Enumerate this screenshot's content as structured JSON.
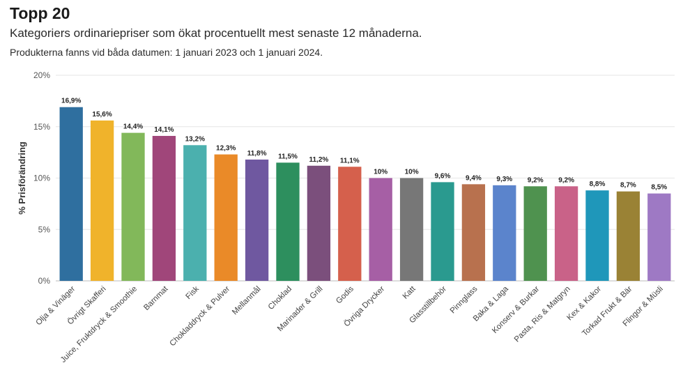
{
  "header": {
    "title": "Topp 20",
    "subtitle": "Kategoriers ordinariepriser som ökat procentuellt mest senaste 12 månaderna.",
    "note": "Produkterna fanns vid båda datumen: 1 januari 2023 och 1 januari 2024."
  },
  "chart_data": {
    "type": "bar",
    "title": "Topp 20",
    "xlabel": "",
    "ylabel": "% Prisförändring",
    "ylim": [
      0,
      20
    ],
    "yticks": [
      0,
      5,
      10,
      15,
      20
    ],
    "ytick_labels": [
      "0%",
      "5%",
      "10%",
      "15%",
      "20%"
    ],
    "grid": true,
    "categories": [
      "Olja & Vinäger",
      "Övrigt Skafferi",
      "Juice, Fruktdryck & Smoothie",
      "Barnmat",
      "Fisk",
      "Chokladdryck & Pulver",
      "Mellanmål",
      "Choklad",
      "Marinader & Grill",
      "Godis",
      "Övriga Drycker",
      "Katt",
      "Glasstillbehör",
      "Pinnglass",
      "Baka & Laga",
      "Konserv & Burkar",
      "Pasta, Ris & Matgryn",
      "Kex & Kakor",
      "Torkad Frukt & Bär",
      "Flingor & Müsli"
    ],
    "values": [
      16.9,
      15.6,
      14.4,
      14.1,
      13.2,
      12.3,
      11.8,
      11.5,
      11.2,
      11.1,
      10,
      10,
      9.6,
      9.4,
      9.3,
      9.2,
      9.2,
      8.8,
      8.7,
      8.5
    ],
    "value_labels": [
      "16,9%",
      "15,6%",
      "14,4%",
      "14,1%",
      "13,2%",
      "12,3%",
      "11,8%",
      "11,5%",
      "11,2%",
      "11,1%",
      "10%",
      "10%",
      "9,6%",
      "9,4%",
      "9,3%",
      "9,2%",
      "9,2%",
      "8,8%",
      "8,7%",
      "8,5%"
    ],
    "colors": [
      "#2f6f9f",
      "#f0b32b",
      "#82b85a",
      "#a0467a",
      "#4bb0ae",
      "#ea8a28",
      "#6f58a0",
      "#2d8f5e",
      "#7b4f7c",
      "#d5604c",
      "#a65fa5",
      "#777777",
      "#2a9a8f",
      "#b8714e",
      "#5b84cc",
      "#4f924f",
      "#c96288",
      "#1f97ba",
      "#9a8235",
      "#9e79c4"
    ]
  }
}
